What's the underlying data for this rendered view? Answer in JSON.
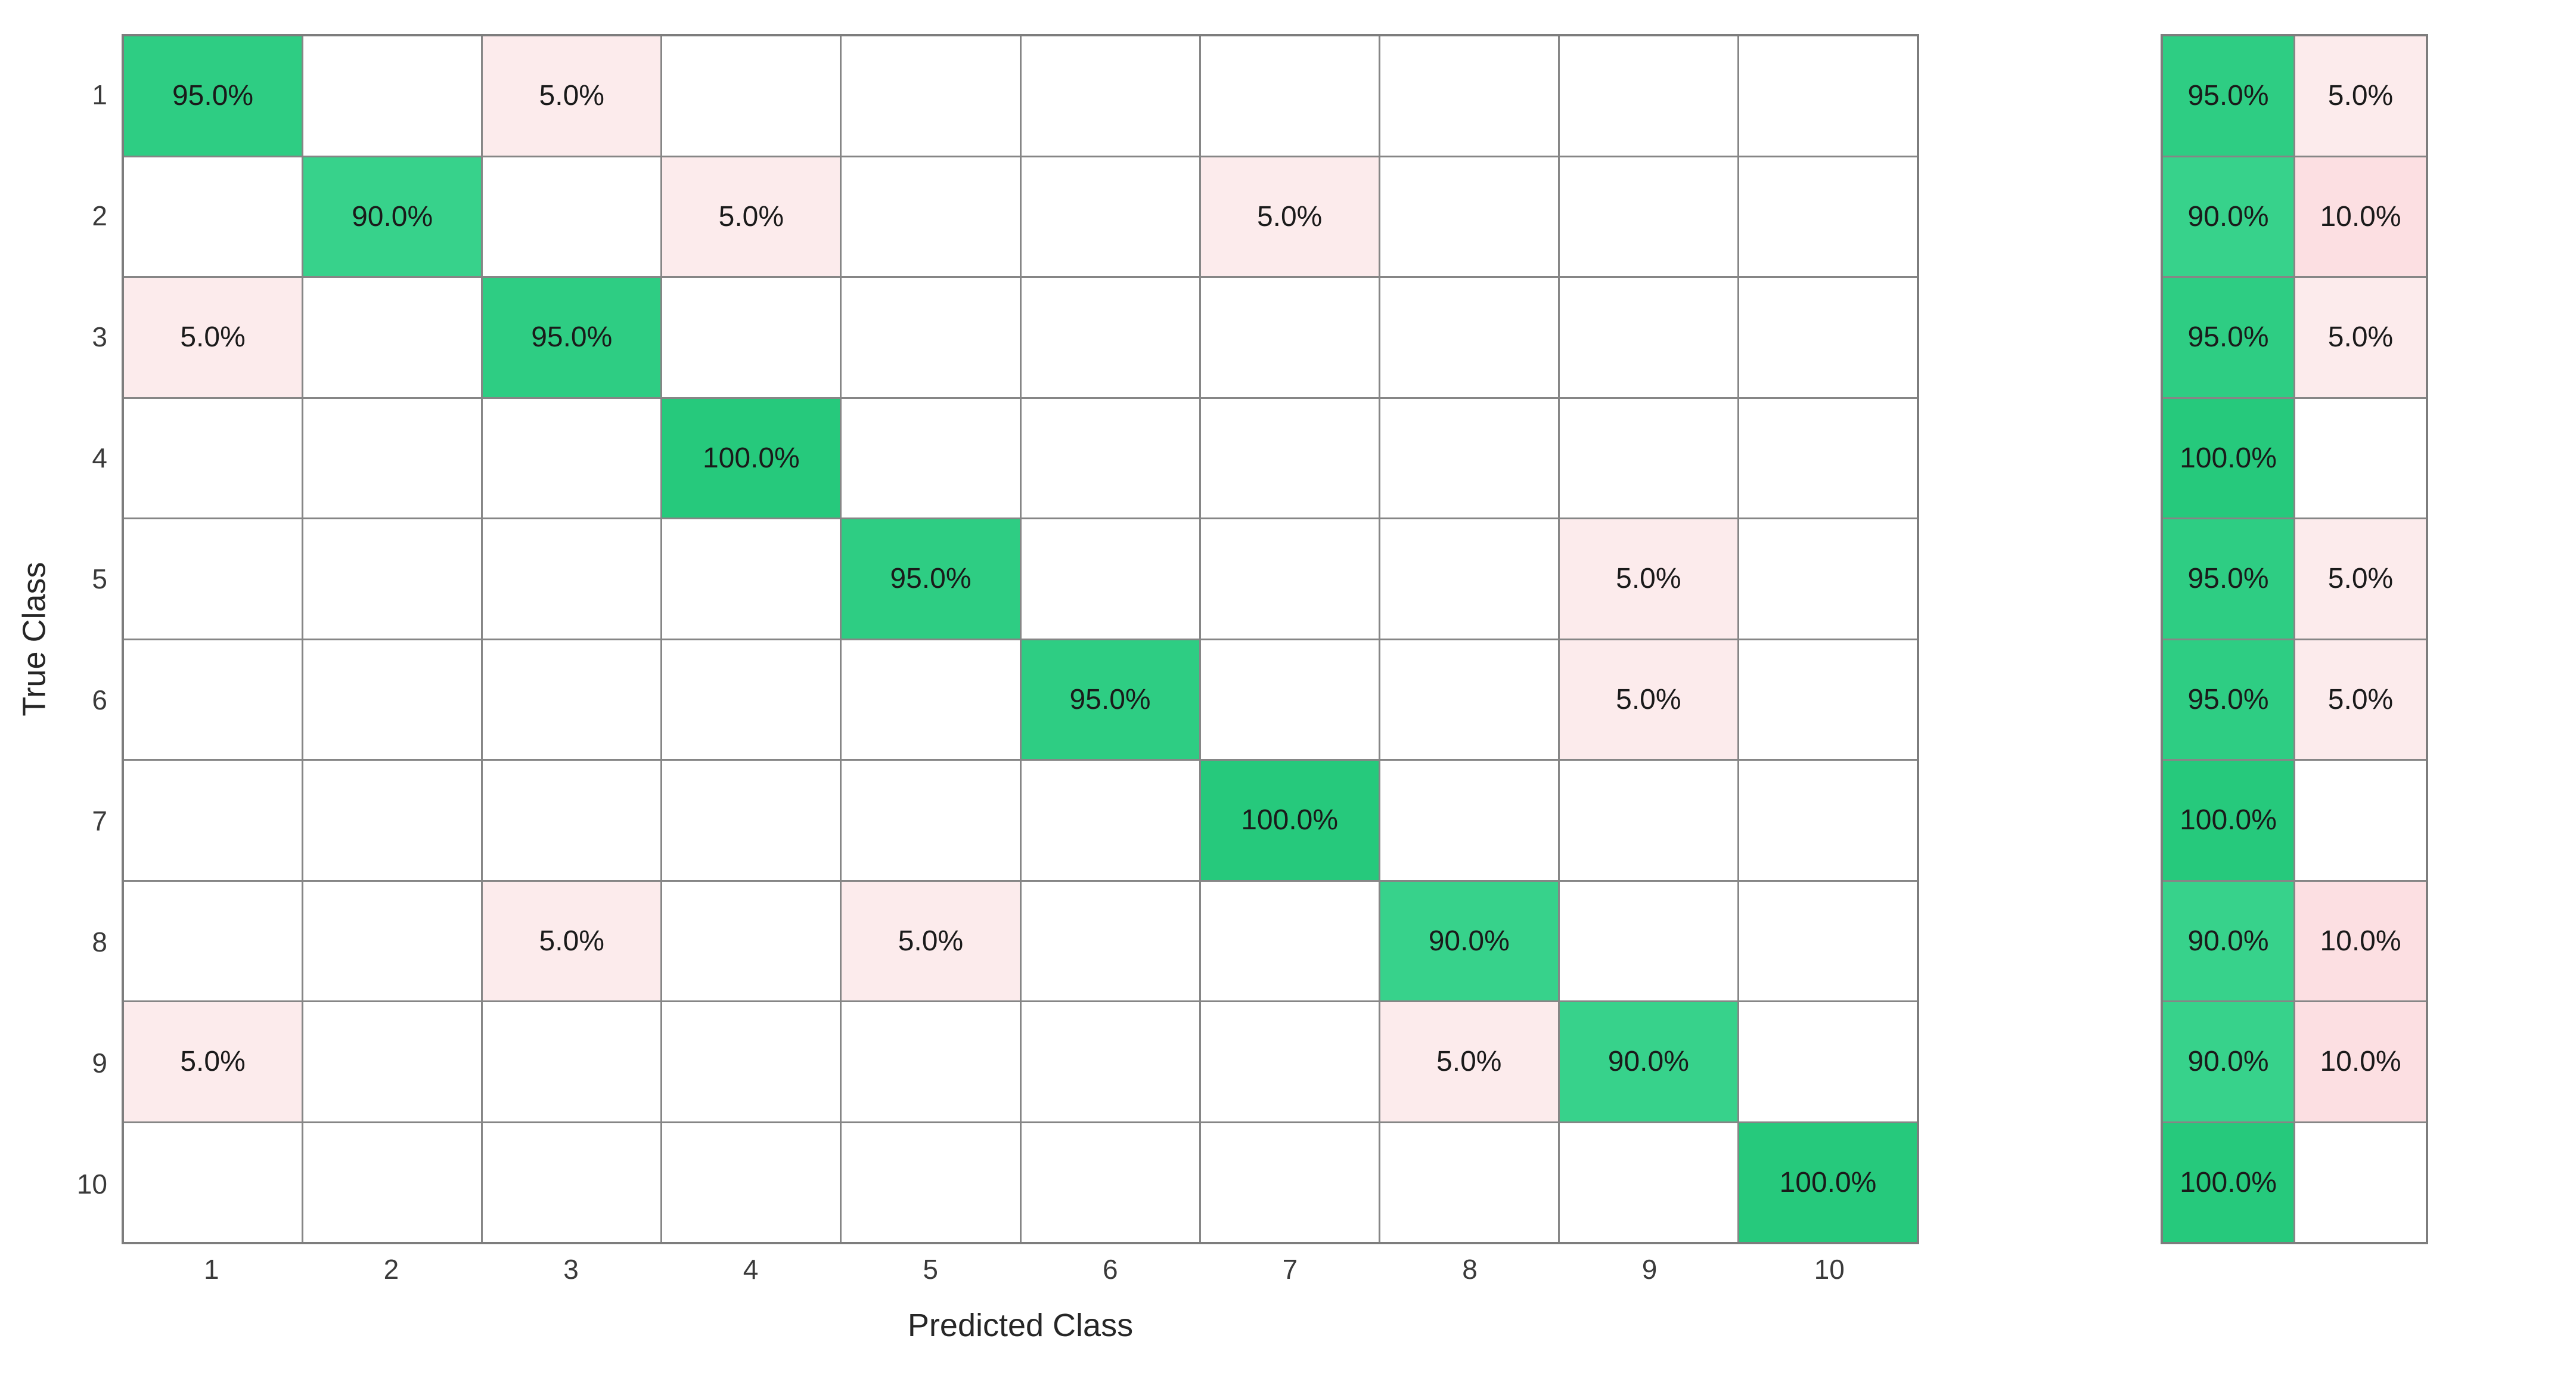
{
  "chart_data": {
    "type": "heatmap",
    "title": "",
    "xlabel": "Predicted Class",
    "ylabel": "True Class",
    "x_ticks": [
      "1",
      "2",
      "3",
      "4",
      "5",
      "6",
      "7",
      "8",
      "9",
      "10"
    ],
    "y_ticks": [
      "1",
      "2",
      "3",
      "4",
      "5",
      "6",
      "7",
      "8",
      "9",
      "10"
    ],
    "grid": true,
    "legend_position": "none",
    "matrix": [
      [
        "95.0%",
        "",
        "5.0%",
        "",
        "",
        "",
        "",
        "",
        "",
        ""
      ],
      [
        "",
        "90.0%",
        "",
        "5.0%",
        "",
        "",
        "5.0%",
        "",
        "",
        ""
      ],
      [
        "5.0%",
        "",
        "95.0%",
        "",
        "",
        "",
        "",
        "",
        "",
        ""
      ],
      [
        "",
        "",
        "",
        "100.0%",
        "",
        "",
        "",
        "",
        "",
        ""
      ],
      [
        "",
        "",
        "",
        "",
        "95.0%",
        "",
        "",
        "",
        "5.0%",
        ""
      ],
      [
        "",
        "",
        "",
        "",
        "",
        "95.0%",
        "",
        "",
        "5.0%",
        ""
      ],
      [
        "",
        "",
        "",
        "",
        "",
        "",
        "100.0%",
        "",
        "",
        ""
      ],
      [
        "",
        "",
        "5.0%",
        "",
        "5.0%",
        "",
        "",
        "90.0%",
        "",
        ""
      ],
      [
        "5.0%",
        "",
        "",
        "",
        "",
        "",
        "",
        "5.0%",
        "90.0%",
        ""
      ],
      [
        "",
        "",
        "",
        "",
        "",
        "",
        "",
        "",
        "",
        "100.0%"
      ]
    ],
    "row_summary": [
      {
        "recall": "95.0%",
        "miss": "5.0%"
      },
      {
        "recall": "90.0%",
        "miss": "10.0%"
      },
      {
        "recall": "95.0%",
        "miss": "5.0%"
      },
      {
        "recall": "100.0%",
        "miss": ""
      },
      {
        "recall": "95.0%",
        "miss": "5.0%"
      },
      {
        "recall": "95.0%",
        "miss": "5.0%"
      },
      {
        "recall": "100.0%",
        "miss": ""
      },
      {
        "recall": "90.0%",
        "miss": "10.0%"
      },
      {
        "recall": "90.0%",
        "miss": "10.0%"
      },
      {
        "recall": "100.0%",
        "miss": ""
      }
    ],
    "palette": {
      "diagonal_green": {
        "100.0%": "#26c97c",
        "95.0%": "#2ecd83",
        "90.0%": "#37d28b"
      },
      "offdiag_pink": {
        "10.0%": "#fcdfe2",
        "5.0%": "#fcebec"
      },
      "empty_cell": "#ffffff",
      "grid_line": "#868686",
      "outer_border": "#7d7d7d",
      "cell_text": "#1a1a1a",
      "tick_text": "#3a3a3a",
      "axis_label_text": "#262626"
    }
  }
}
